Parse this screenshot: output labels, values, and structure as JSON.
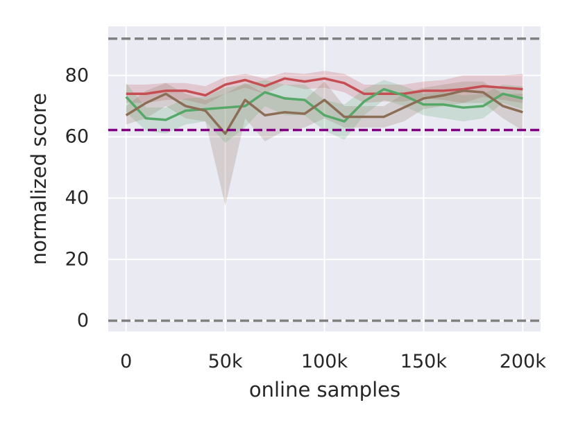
{
  "chart_data": {
    "type": "line",
    "title": "",
    "xlabel": "online samples",
    "ylabel": "normalized score",
    "xlim": [
      -9000,
      209000
    ],
    "ylim": [
      -3.5,
      96
    ],
    "grid": true,
    "background": "#eaeaf2",
    "xticks": [
      0,
      50000,
      100000,
      150000,
      200000
    ],
    "xtick_labels": [
      "0",
      "50k",
      "100k",
      "150k",
      "200k"
    ],
    "yticks": [
      0,
      20,
      40,
      60,
      80
    ],
    "ytick_labels": [
      "0",
      "20",
      "40",
      "60",
      "80"
    ],
    "x": [
      0,
      10000,
      20000,
      30000,
      40000,
      50000,
      60000,
      70000,
      80000,
      90000,
      100000,
      110000,
      120000,
      130000,
      140000,
      150000,
      160000,
      170000,
      180000,
      190000,
      200000
    ],
    "series": [
      {
        "color": "#c44e52",
        "values": [
          74,
          74,
          75,
          75,
          73.5,
          77,
          78.5,
          76.5,
          79,
          78,
          79,
          77.5,
          74,
          74,
          74,
          75,
          75,
          75.5,
          76.5,
          76,
          75.5
        ],
        "lower": [
          71,
          71,
          72,
          72,
          70.5,
          74,
          76,
          74,
          77,
          75.5,
          76,
          74.5,
          71,
          71.5,
          71.5,
          72.5,
          72,
          71,
          73,
          72,
          71
        ],
        "upper": [
          77,
          77,
          77.5,
          77.5,
          76.5,
          79.5,
          80.5,
          79,
          81,
          80.5,
          81.5,
          80.5,
          77,
          77,
          77,
          78,
          78.5,
          80,
          80,
          80,
          80.5
        ]
      },
      {
        "color": "#55a868",
        "values": [
          73,
          66,
          65.5,
          68.5,
          69,
          69.5,
          70,
          74.5,
          72.5,
          72,
          67,
          65,
          71.5,
          75.5,
          73.5,
          70.5,
          70.5,
          69.5,
          70,
          74,
          72.5
        ],
        "lower": [
          68,
          62,
          61,
          64,
          65,
          58,
          63,
          70,
          67,
          67,
          62,
          59,
          67,
          72,
          70,
          67,
          66,
          65,
          66,
          71,
          69
        ],
        "upper": [
          77.5,
          69.5,
          69.5,
          72.5,
          73,
          76,
          77,
          78.5,
          77,
          77,
          72,
          70.5,
          75.5,
          78.5,
          76.5,
          74,
          74.5,
          73.5,
          74,
          77,
          76.5
        ]
      },
      {
        "color": "#8c6d56",
        "values": [
          67,
          71,
          74,
          70,
          68.5,
          61,
          72,
          67,
          68,
          67.5,
          72,
          66.5,
          66.5,
          66.5,
          69.5,
          72.5,
          73.5,
          75,
          74.5,
          70,
          68
        ],
        "lower": [
          64,
          66,
          70,
          66,
          65,
          37.5,
          66,
          58.5,
          62,
          63,
          66,
          63,
          63,
          63,
          65,
          69,
          70,
          71,
          71,
          66,
          62
        ],
        "upper": [
          70,
          75,
          77.5,
          74,
          72,
          74,
          77.5,
          74,
          73,
          72,
          78,
          70,
          70,
          70,
          74,
          76,
          77,
          78,
          78,
          74,
          74
        ]
      }
    ],
    "reference_lines": [
      {
        "y": 92,
        "color": "#808080",
        "style": "dashed"
      },
      {
        "y": 62.2,
        "color": "#800080",
        "style": "dashed"
      },
      {
        "y": 0,
        "color": "#808080",
        "style": "dashed"
      }
    ]
  }
}
